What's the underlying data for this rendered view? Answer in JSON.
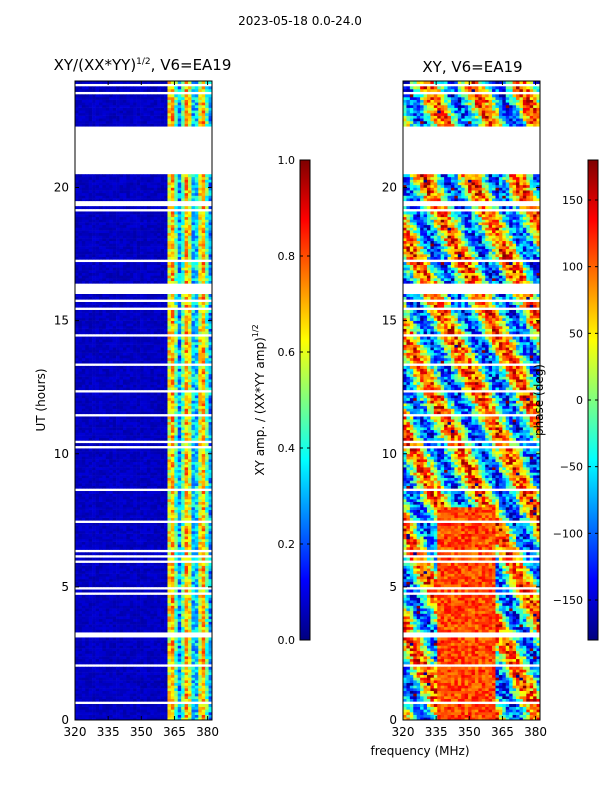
{
  "suptitle": "2023-05-18 0.0-24.0",
  "left_title": "XY/(XX*YY)^1/2, V6=EA19",
  "left_title_main": "XY/(XX*YY)",
  "left_title_sup": "1/2",
  "left_title_tail": ", V6=EA19",
  "right_title": "XY, V6=EA19",
  "colors": {
    "cmap": [
      "#00007f",
      "#0000ff",
      "#007fff",
      "#00ffff",
      "#7fff7f",
      "#ffff00",
      "#ff7f00",
      "#ff0000",
      "#7f0000"
    ],
    "gap": "#ffffff"
  },
  "chart_data": [
    {
      "type": "heatmap",
      "title": "XY/(XX*YY)^1/2, V6=EA19",
      "xlabel": "",
      "ylabel": "UT (hours)",
      "xlim": [
        320,
        382
      ],
      "ylim": [
        0,
        24
      ],
      "xticks": [
        320,
        335,
        350,
        365,
        380
      ],
      "yticks": [
        0,
        5,
        10,
        15,
        20
      ],
      "colorbar": {
        "label": "XY amp. / (XX*YY amp)^1/2",
        "label_main": "XY amp. / (XX*YY amp)",
        "label_sup": "1/2",
        "range": [
          0.0,
          1.0
        ],
        "ticks": [
          "0.0",
          "0.2",
          "0.4",
          "0.6",
          "0.8",
          "1.0"
        ]
      },
      "description_values": "low amplitude (~0.05) from 320-362 MHz; elevated amplitude (0.3-0.8) in band 362-382 MHz",
      "gaps_hours": [
        [
          20.5,
          22.3
        ]
      ]
    },
    {
      "type": "heatmap",
      "title": "XY, V6=EA19",
      "xlabel": "frequency (MHz)",
      "ylabel": "",
      "xlim": [
        320,
        382
      ],
      "ylim": [
        0,
        24
      ],
      "xticks": [
        320,
        335,
        350,
        365,
        380
      ],
      "yticks": [
        0,
        5,
        10,
        15,
        20
      ],
      "colorbar": {
        "label": "phase (deg)",
        "range": [
          -180,
          180
        ],
        "ticks": [
          "-150",
          "-100",
          "-50",
          "0",
          "50",
          "100",
          "150"
        ]
      },
      "description_values": "phase varies widely across -180 to 180 deg; large positive (~100-150 deg) region between 0 and 8 hours near 340-360 MHz",
      "gaps_hours": [
        [
          20.5,
          22.3
        ]
      ]
    }
  ]
}
